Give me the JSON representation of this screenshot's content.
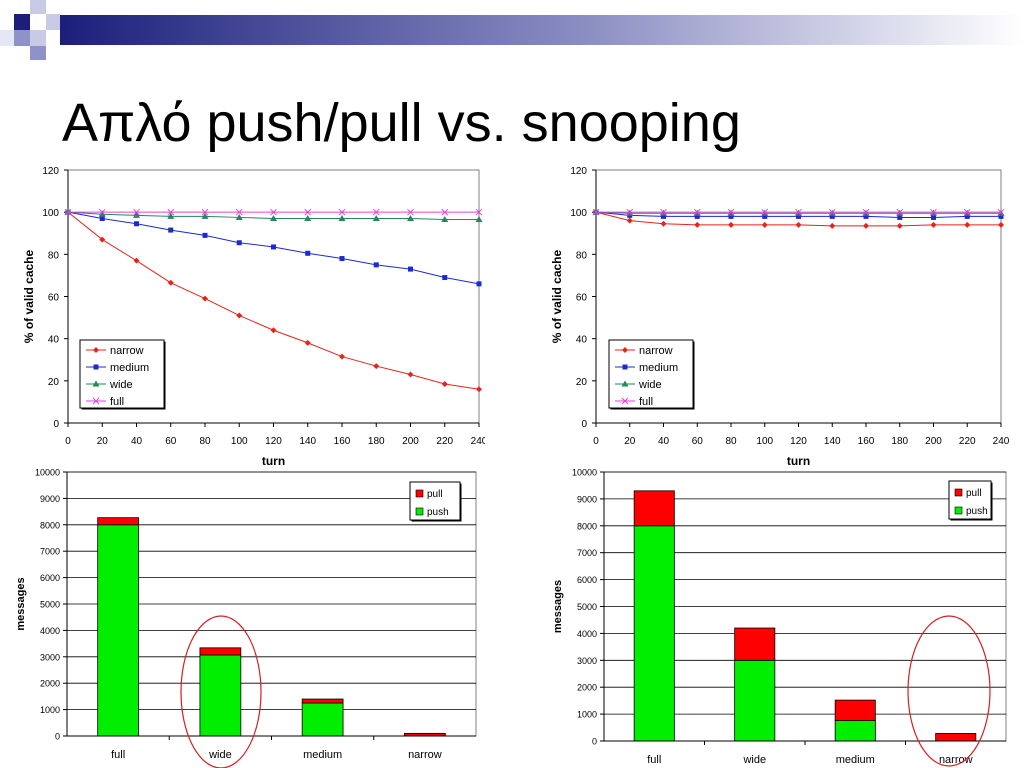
{
  "slide": {
    "title": "Απλό push/pull vs. snooping"
  },
  "colors": {
    "narrow": "#e8231a",
    "medium": "#1a2bd0",
    "wide": "#1f8a5a",
    "full": "#e040e0",
    "pull": "#ff0000",
    "push": "#00ee00"
  },
  "chart_data": [
    {
      "type": "line",
      "xlabel": "turn",
      "ylabel": "% of valid cache",
      "x": [
        0,
        20,
        40,
        60,
        80,
        100,
        120,
        140,
        160,
        180,
        200,
        220,
        240
      ],
      "xlim": [
        0,
        240
      ],
      "ylim": [
        0,
        120
      ],
      "yticks": [
        0,
        20,
        40,
        60,
        80,
        100,
        120
      ],
      "legend": "bottom-left",
      "series": [
        {
          "name": "narrow",
          "key": "narrow",
          "marker": "diamond",
          "values": [
            100,
            87,
            77,
            66.5,
            59,
            51,
            44,
            38,
            31.5,
            27,
            23,
            18.5,
            16
          ]
        },
        {
          "name": "medium",
          "key": "medium",
          "marker": "square",
          "values": [
            100,
            97,
            94.5,
            91.5,
            89,
            85.5,
            83.5,
            80.5,
            78,
            75,
            73,
            69,
            66
          ]
        },
        {
          "name": "wide",
          "key": "wide",
          "marker": "triangle",
          "values": [
            100,
            99,
            98.5,
            98,
            98,
            97.5,
            97,
            97,
            97,
            97,
            97,
            96.5,
            96.5
          ]
        },
        {
          "name": "full",
          "key": "full",
          "marker": "x",
          "values": [
            100,
            100,
            100,
            100,
            100,
            100,
            100,
            100,
            100,
            100,
            100,
            100,
            100
          ]
        }
      ]
    },
    {
      "type": "line",
      "xlabel": "turn",
      "ylabel": "% of valid cache",
      "x": [
        0,
        20,
        40,
        60,
        80,
        100,
        120,
        140,
        160,
        180,
        200,
        220,
        240
      ],
      "xlim": [
        0,
        240
      ],
      "ylim": [
        0,
        120
      ],
      "yticks": [
        0,
        20,
        40,
        60,
        80,
        100,
        120
      ],
      "legend": "bottom-left",
      "series": [
        {
          "name": "narrow",
          "key": "narrow",
          "marker": "diamond",
          "values": [
            100,
            96,
            94.5,
            94,
            94,
            94,
            94,
            93.5,
            93.5,
            93.5,
            94,
            94,
            94
          ]
        },
        {
          "name": "medium",
          "key": "medium",
          "marker": "square",
          "values": [
            100,
            98.5,
            98,
            98,
            98,
            98,
            98,
            98,
            98,
            97.5,
            97.5,
            98,
            98
          ]
        },
        {
          "name": "wide",
          "key": "wide",
          "marker": "triangle",
          "values": [
            100,
            99.5,
            99.5,
            99.5,
            99.5,
            99.5,
            99.5,
            99.5,
            99.5,
            99.5,
            99.5,
            99.5,
            99.5
          ]
        },
        {
          "name": "full",
          "key": "full",
          "marker": "x",
          "values": [
            100,
            100,
            100,
            100,
            100,
            100,
            100,
            100,
            100,
            100,
            100,
            100,
            100
          ]
        }
      ]
    },
    {
      "type": "bar",
      "stacked": true,
      "ylabel": "messages",
      "categories": [
        "full",
        "wide",
        "medium",
        "narrow"
      ],
      "ylim": [
        0,
        10000
      ],
      "yticks": [
        0,
        1000,
        2000,
        3000,
        4000,
        5000,
        6000,
        7000,
        8000,
        9000,
        10000
      ],
      "legend": "top-right",
      "highlight": "wide",
      "series": [
        {
          "name": "pull",
          "key": "pull",
          "values": [
            270,
            270,
            150,
            100
          ]
        },
        {
          "name": "push",
          "key": "push",
          "values": [
            8000,
            3070,
            1250,
            0
          ]
        }
      ]
    },
    {
      "type": "bar",
      "stacked": true,
      "ylabel": "messages",
      "categories": [
        "full",
        "wide",
        "medium",
        "narrow"
      ],
      "ylim": [
        0,
        10000
      ],
      "yticks": [
        0,
        1000,
        2000,
        3000,
        4000,
        5000,
        6000,
        7000,
        8000,
        9000,
        10000
      ],
      "legend": "top-right",
      "highlight": "narrow",
      "series": [
        {
          "name": "pull",
          "key": "pull",
          "values": [
            1300,
            1200,
            760,
            280
          ]
        },
        {
          "name": "push",
          "key": "push",
          "values": [
            8000,
            3000,
            760,
            0
          ]
        }
      ]
    }
  ]
}
